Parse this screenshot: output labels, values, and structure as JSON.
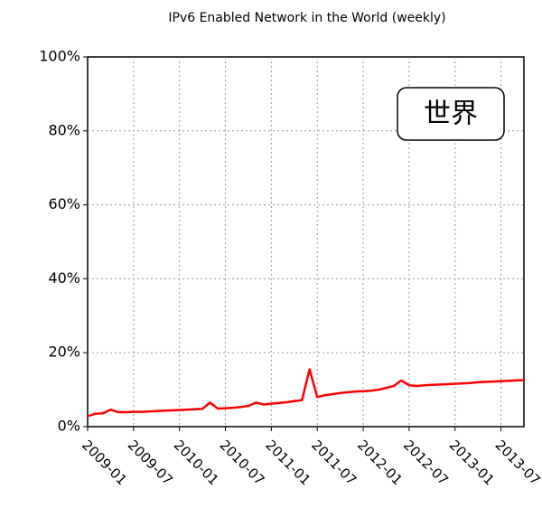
{
  "chart_data": {
    "type": "line",
    "title": "IPv6 Enabled Network in the World (weekly)",
    "annotation": "世界",
    "x": [
      "2009-01",
      "2009-02",
      "2009-03",
      "2009-04",
      "2009-05",
      "2009-06",
      "2009-07",
      "2009-08",
      "2009-09",
      "2009-10",
      "2009-11",
      "2009-12",
      "2010-01",
      "2010-02",
      "2010-03",
      "2010-04",
      "2010-05",
      "2010-06",
      "2010-07",
      "2010-08",
      "2010-09",
      "2010-10",
      "2010-11",
      "2010-12",
      "2011-01",
      "2011-02",
      "2011-03",
      "2011-04",
      "2011-05",
      "2011-06",
      "2011-07",
      "2011-08",
      "2011-09",
      "2011-10",
      "2011-11",
      "2011-12",
      "2012-01",
      "2012-02",
      "2012-03",
      "2012-04",
      "2012-05",
      "2012-06",
      "2012-07",
      "2012-08",
      "2012-09",
      "2012-10",
      "2012-11",
      "2012-12",
      "2013-01",
      "2013-02",
      "2013-03",
      "2013-04",
      "2013-05",
      "2013-06",
      "2013-07",
      "2013-08",
      "2013-09",
      "2013-10"
    ],
    "series": [
      {
        "color": "#ff0000",
        "values": [
          2.8,
          3.5,
          3.6,
          4.6,
          3.9,
          3.9,
          4.0,
          4.0,
          4.1,
          4.2,
          4.3,
          4.4,
          4.5,
          4.6,
          4.7,
          4.8,
          6.5,
          4.9,
          5.0,
          5.1,
          5.3,
          5.6,
          6.5,
          6.0,
          6.2,
          6.4,
          6.6,
          6.9,
          7.2,
          15.5,
          8.0,
          8.5,
          8.8,
          9.1,
          9.3,
          9.5,
          9.6,
          9.7,
          10.0,
          10.5,
          11.0,
          12.5,
          11.2,
          11.0,
          11.2,
          11.3,
          11.4,
          11.5,
          11.6,
          11.7,
          11.8,
          12.0,
          12.1,
          12.2,
          12.3,
          12.4,
          12.5,
          12.6
        ]
      }
    ],
    "xlim": [
      "2009-01",
      "2013-10"
    ],
    "xticks": [
      "2009-01",
      "2009-07",
      "2010-01",
      "2010-07",
      "2011-01",
      "2011-07",
      "2012-01",
      "2012-07",
      "2013-01",
      "2013-07"
    ],
    "ylim": [
      0,
      100
    ],
    "yticks": [
      {
        "value": 0,
        "label": "0%"
      },
      {
        "value": 20,
        "label": "20%"
      },
      {
        "value": 40,
        "label": "40%"
      },
      {
        "value": 60,
        "label": "60%"
      },
      {
        "value": 80,
        "label": "80%"
      },
      {
        "value": 100,
        "label": "100%"
      }
    ],
    "grid": true
  }
}
